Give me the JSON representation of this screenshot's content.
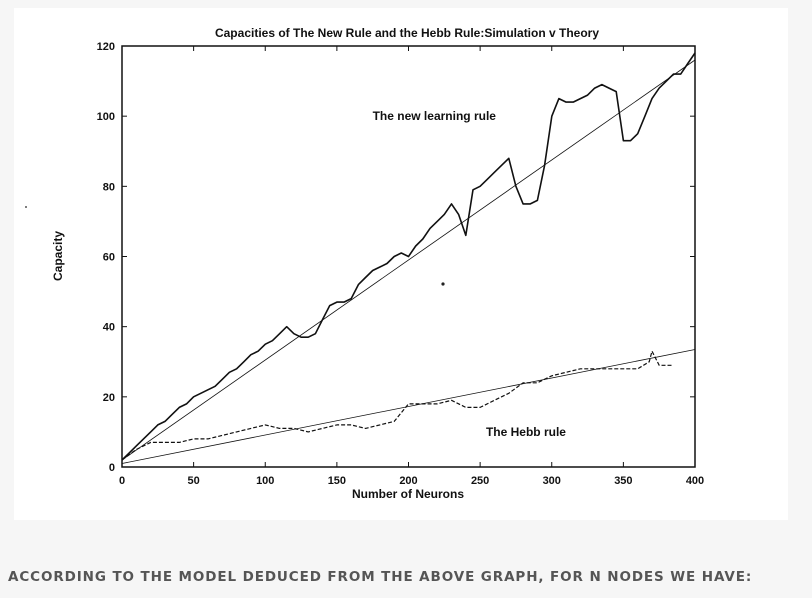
{
  "caption": "ACCORDING TO THE MODEL DEDUCED FROM THE ABOVE GRAPH, FOR N NODES WE HAVE:",
  "chart_data": {
    "type": "line",
    "title": "Capacities of The New Rule and the Hebb Rule:Simulation v Theory",
    "xlabel": "Number of Neurons",
    "ylabel": "Capacity",
    "xlim": [
      0,
      400
    ],
    "ylim": [
      0,
      120
    ],
    "x_ticks": [
      0,
      50,
      100,
      150,
      200,
      250,
      300,
      350,
      400
    ],
    "y_ticks": [
      0,
      20,
      40,
      60,
      80,
      100,
      120
    ],
    "grid": false,
    "legend": "none",
    "annotations": [
      {
        "text": "The new learning rule",
        "x": 218,
        "y": 100
      },
      {
        "text": "The Hebb rule",
        "x": 282,
        "y": 10
      }
    ],
    "series": [
      {
        "style": "solid",
        "x": [
          0,
          5,
          10,
          15,
          20,
          25,
          30,
          35,
          40,
          45,
          50,
          55,
          60,
          65,
          70,
          75,
          80,
          85,
          90,
          95,
          100,
          105,
          110,
          115,
          120,
          125,
          130,
          135,
          140,
          145,
          150,
          155,
          160,
          165,
          170,
          175,
          180,
          185,
          190,
          195,
          200,
          205,
          210,
          215,
          220,
          225,
          230,
          235,
          240,
          245,
          250,
          255,
          260,
          265,
          270,
          275,
          280,
          285,
          290,
          295,
          300,
          305,
          310,
          315,
          320,
          325,
          330,
          335,
          340,
          345,
          350,
          355,
          360,
          365,
          370,
          375,
          380,
          385,
          390,
          395,
          400
        ],
        "y": [
          2,
          4,
          6,
          8,
          10,
          12,
          13,
          15,
          17,
          18,
          20,
          21,
          22,
          23,
          25,
          27,
          28,
          30,
          32,
          33,
          35,
          36,
          38,
          40,
          38,
          37,
          37,
          38,
          42,
          46,
          47,
          47,
          48,
          52,
          54,
          56,
          57,
          58,
          60,
          61,
          60,
          63,
          65,
          68,
          70,
          72,
          75,
          72,
          66,
          79,
          80,
          82,
          84,
          86,
          88,
          80,
          75,
          75,
          76,
          86,
          100,
          105,
          104,
          104,
          105,
          106,
          108,
          109,
          108,
          107,
          93,
          93,
          95,
          100,
          105,
          108,
          110,
          112,
          112,
          115,
          118
        ]
      },
      {
        "style": "dashed",
        "x": [
          0,
          10,
          20,
          30,
          40,
          50,
          60,
          70,
          80,
          90,
          100,
          110,
          120,
          130,
          140,
          150,
          160,
          170,
          180,
          190,
          200,
          210,
          220,
          230,
          240,
          250,
          260,
          270,
          280,
          290,
          300,
          310,
          320,
          330,
          340,
          350,
          360,
          368,
          370,
          375,
          380,
          385
        ],
        "y": [
          2,
          5,
          7,
          7,
          7,
          8,
          8,
          9,
          10,
          11,
          12,
          11,
          11,
          10,
          11,
          12,
          12,
          11,
          12,
          13,
          18,
          18,
          18,
          19,
          17,
          17,
          19,
          21,
          24,
          24,
          26,
          27,
          28,
          28,
          28,
          28,
          28,
          30,
          33,
          29,
          29,
          29
        ]
      },
      {
        "style": "thin",
        "x": [
          0,
          400
        ],
        "y": [
          2,
          116
        ]
      },
      {
        "style": "thin",
        "x": [
          0,
          400
        ],
        "y": [
          1,
          33.5
        ]
      }
    ]
  }
}
